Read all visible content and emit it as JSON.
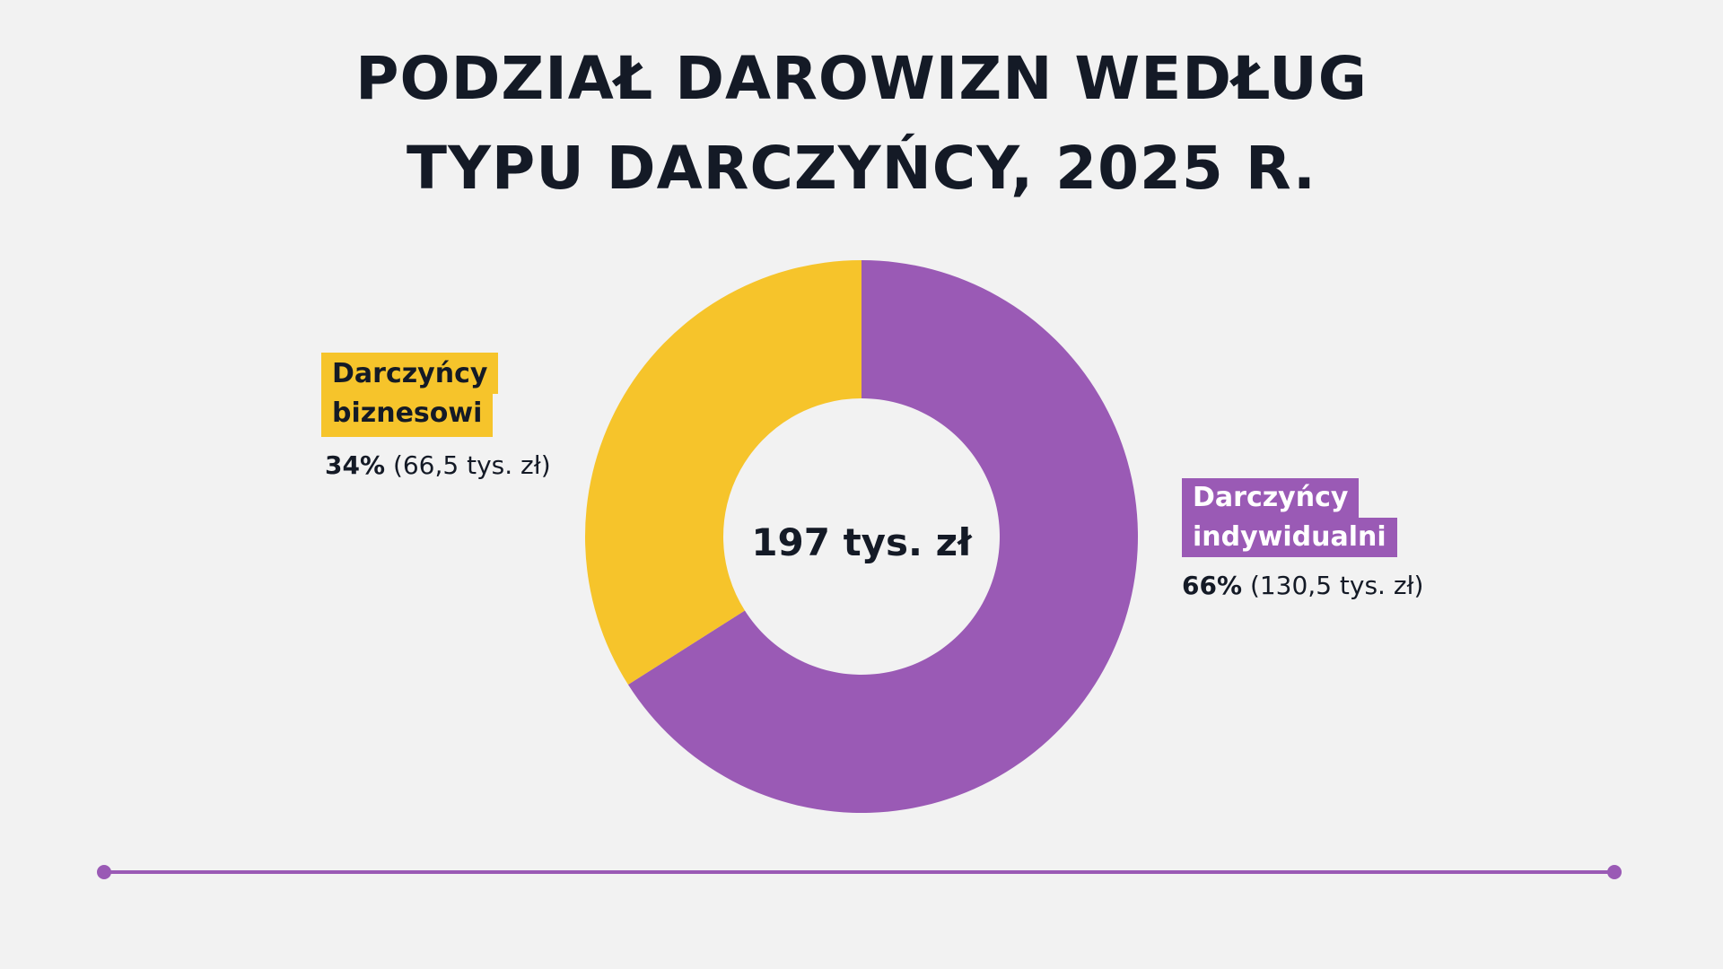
{
  "title_lines": [
    "PODZIAŁ DAROWIZN WEDŁUG",
    "TYPU DARCZYŃCY, 2025 R."
  ],
  "center_text": "197 tys. zł",
  "colors": {
    "background": "#f2f2f2",
    "business": "#f6c42b",
    "individual": "#9a5ab5",
    "text": "#141a26"
  },
  "labels": {
    "business": {
      "tag_lines": [
        "Darczyńcy",
        "biznesowi"
      ],
      "pct": "34%",
      "amount": "(66,5 tys. zł)"
    },
    "individual": {
      "tag_lines": [
        "Darczyńcy",
        "indywidualni"
      ],
      "pct": "66%",
      "amount": "(130,5 tys. zł)"
    }
  },
  "chart_data": {
    "type": "pie",
    "variant": "donut",
    "title": "PODZIAŁ DAROWIZN WEDŁUG TYPU DARCZYŃCY, 2025 R.",
    "total_label": "197 tys. zł",
    "unit": "tys. zł",
    "slices": [
      {
        "name": "Darczyńcy indywidualni",
        "percent": 66,
        "value": 130.5,
        "color": "#9a5ab5"
      },
      {
        "name": "Darczyńcy biznesowi",
        "percent": 34,
        "value": 66.5,
        "color": "#f6c42b"
      }
    ],
    "start": "12 o'clock, clockwise",
    "legend": "direct labels"
  }
}
